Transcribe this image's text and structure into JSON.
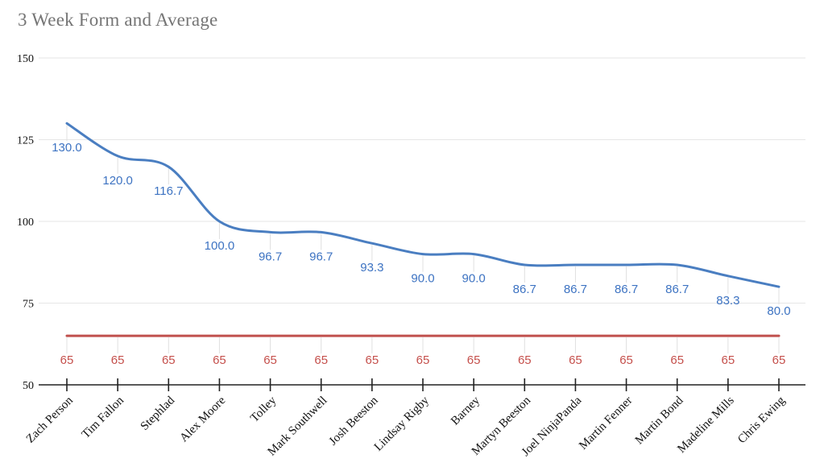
{
  "title": "3 Week Form and Average",
  "colors": {
    "form_line": "#4a7ec1",
    "form_label": "#3d73c2",
    "average_line": "#c0504d",
    "average_label": "#c5504c",
    "title_text": "#757575",
    "axis_text": "#111111",
    "gridline": "#e6e6e6",
    "stem": "#e0e0e0",
    "axis_line": "#222222",
    "background": "#ffffff"
  },
  "chart_data": {
    "type": "line",
    "title": "3 Week Form and Average",
    "categories": [
      "Zach Person",
      "Tim Fallon",
      "Stephlad",
      "Alex Moore",
      "Tolley",
      "Mark Southwell",
      "Josh Beeston",
      "Lindsay Rigby",
      "Barney",
      "Martyn Beeston",
      "Joel NinjaPanda",
      "Martin Fenner",
      "Martin Bond",
      "Madeline Mills",
      "Chris Ewing"
    ],
    "series": [
      {
        "name": "Form",
        "smooth": true,
        "color_key": "form_line",
        "label_color_key": "form_label",
        "values": [
          130,
          120,
          116.7,
          100,
          96.7,
          96.7,
          93.3,
          90,
          90,
          86.7,
          86.7,
          86.7,
          86.7,
          83.3,
          80
        ],
        "point_labels": [
          "130.0",
          "120.0",
          "116.7",
          "100.0",
          "96.7",
          "96.7",
          "93.3",
          "90.0",
          "90.0",
          "86.7",
          "86.7",
          "86.7",
          "86.7",
          "83.3",
          "80.0"
        ]
      },
      {
        "name": "Average",
        "smooth": false,
        "color_key": "average_line",
        "label_color_key": "average_label",
        "values": [
          65,
          65,
          65,
          65,
          65,
          65,
          65,
          65,
          65,
          65,
          65,
          65,
          65,
          65,
          65
        ],
        "point_labels": [
          "65",
          "65",
          "65",
          "65",
          "65",
          "65",
          "65",
          "65",
          "65",
          "65",
          "65",
          "65",
          "65",
          "65",
          "65"
        ]
      }
    ],
    "ylim": [
      50,
      150
    ],
    "yticks": [
      "150",
      "125",
      "100",
      "75",
      "50"
    ],
    "grid": true,
    "legend": "none",
    "x_label_rotation": -45
  }
}
